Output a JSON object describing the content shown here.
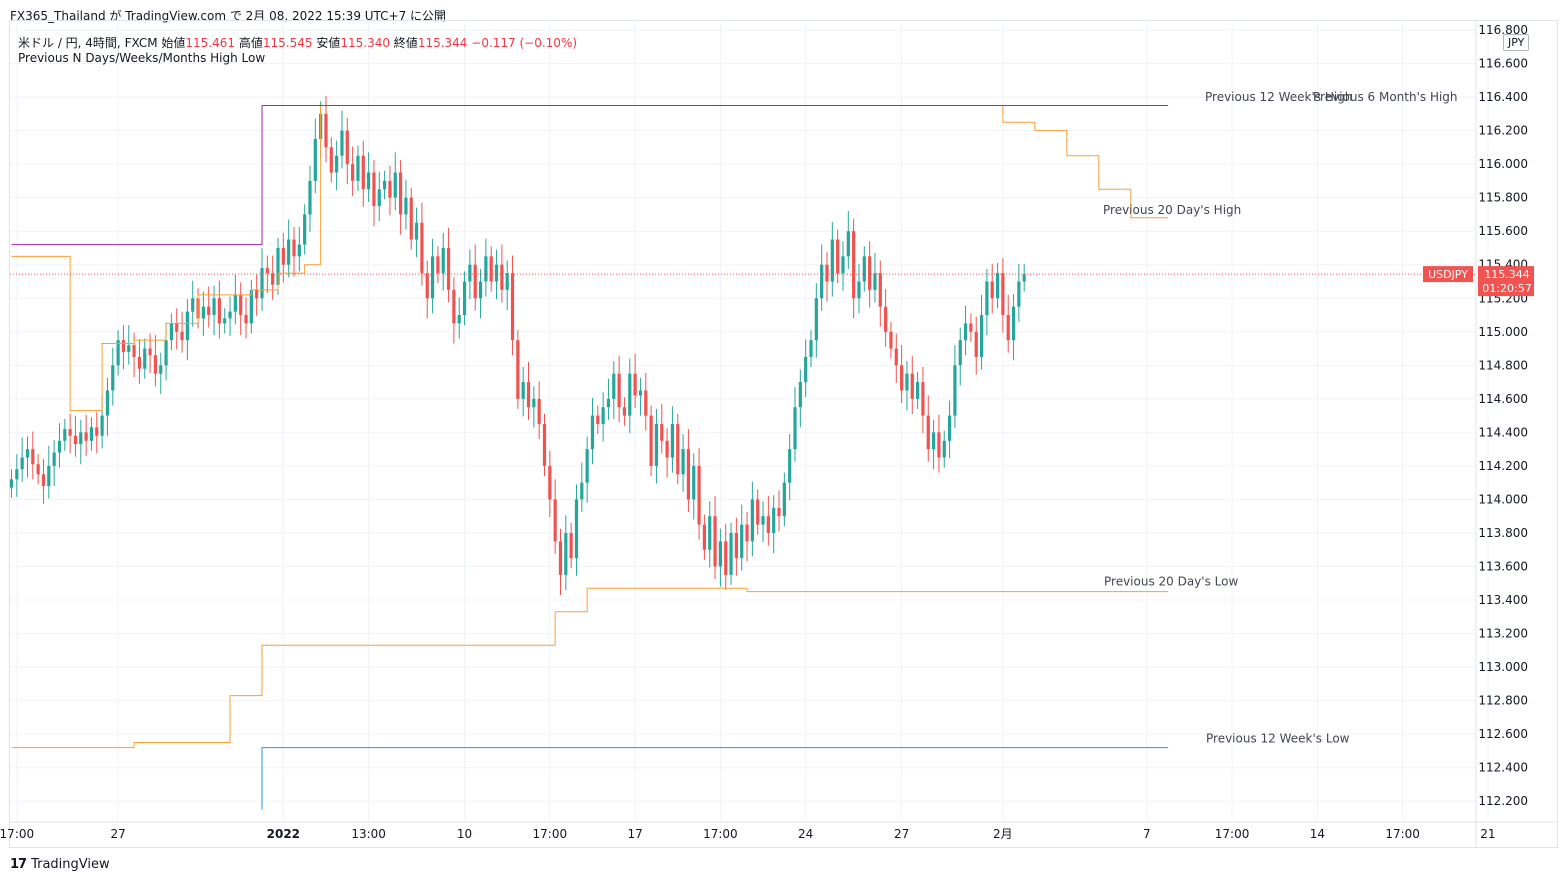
{
  "header": {
    "caption": "FX365_Thailand が TradingView.com で 2月 08, 2022 15:39 UTC+7 に公開"
  },
  "legend": {
    "symbol_info": "米ドル / 円, 4時間, FXCM",
    "open_label": "始値",
    "open_value": "115.461",
    "high_label": "高値",
    "high_value": "115.545",
    "low_label": "安値",
    "low_value": "115.340",
    "close_label": "終値",
    "close_value": "115.344",
    "change": "−0.117 (−0.10%)",
    "indicator_name": "Previous N Days/Weeks/Months High Low"
  },
  "currency_badge": "JPY",
  "footer": {
    "brand": "TradingView"
  },
  "colors": {
    "up": "#26a69a",
    "down": "#ef5350",
    "orange": "#f7a035",
    "purple": "#9c27b0",
    "blue": "#2196f3",
    "price_label": "#f05350"
  },
  "chart_data": {
    "type": "candlestick",
    "symbol": "USDJPY",
    "last_price": "115.344",
    "countdown": "01:20:57",
    "ylim": [
      112.1,
      116.8
    ],
    "y_ticks": [
      "116.800",
      "116.600",
      "116.400",
      "116.200",
      "116.000",
      "115.800",
      "115.600",
      "115.400",
      "115.200",
      "115.000",
      "114.800",
      "114.600",
      "114.400",
      "114.200",
      "114.000",
      "113.800",
      "113.600",
      "113.400",
      "113.200",
      "113.000",
      "112.800",
      "112.600",
      "112.400",
      "112.200"
    ],
    "x_ticks": [
      {
        "label": "17:00",
        "bar": 1,
        "bold": false
      },
      {
        "label": "27",
        "bar": 20,
        "bold": false
      },
      {
        "label": "2022",
        "bar": 51,
        "bold": true
      },
      {
        "label": "13:00",
        "bar": 67,
        "bold": false
      },
      {
        "label": "10",
        "bar": 85,
        "bold": false
      },
      {
        "label": "17:00",
        "bar": 101,
        "bold": false
      },
      {
        "label": "17",
        "bar": 117,
        "bold": false
      },
      {
        "label": "17:00",
        "bar": 133,
        "bold": false
      },
      {
        "label": "24",
        "bar": 149,
        "bold": false
      },
      {
        "label": "27",
        "bar": 167,
        "bold": false
      },
      {
        "label": "2月",
        "bar": 186,
        "bold": false
      },
      {
        "label": "7",
        "bar": 213,
        "bold": false
      },
      {
        "label": "17:00",
        "bar": 229,
        "bold": false
      },
      {
        "label": "14",
        "bar": 245,
        "bold": false
      },
      {
        "label": "17:00",
        "bar": 261,
        "bold": false
      },
      {
        "label": "21",
        "bar": 277,
        "bold": false
      }
    ],
    "closes": [
      114.12,
      114.18,
      114.25,
      114.3,
      114.21,
      114.15,
      114.08,
      114.2,
      114.28,
      114.35,
      114.42,
      114.38,
      114.33,
      114.4,
      114.35,
      114.43,
      114.38,
      114.5,
      114.65,
      114.8,
      114.95,
      114.88,
      114.92,
      114.85,
      114.78,
      114.9,
      114.86,
      114.75,
      114.8,
      114.95,
      115.05,
      115.0,
      114.95,
      115.12,
      115.2,
      115.08,
      115.15,
      115.1,
      115.2,
      115.05,
      115.08,
      115.12,
      115.22,
      115.1,
      115.05,
      115.25,
      115.2,
      115.38,
      115.35,
      115.28,
      115.5,
      115.4,
      115.55,
      115.45,
      115.52,
      115.7,
      115.9,
      116.15,
      116.3,
      116.1,
      115.95,
      116.05,
      116.2,
      116.0,
      115.9,
      116.05,
      115.85,
      115.95,
      115.75,
      115.85,
      115.9,
      115.8,
      115.95,
      115.7,
      115.8,
      115.55,
      115.65,
      115.35,
      115.2,
      115.45,
      115.35,
      115.5,
      115.25,
      115.05,
      115.1,
      115.3,
      115.4,
      115.2,
      115.3,
      115.45,
      115.3,
      115.4,
      115.25,
      115.35,
      114.95,
      114.6,
      114.7,
      114.55,
      114.6,
      114.45,
      114.2,
      114.0,
      113.75,
      113.55,
      113.8,
      113.65,
      114.0,
      114.1,
      114.3,
      114.5,
      114.45,
      114.55,
      114.6,
      114.75,
      114.55,
      114.5,
      114.75,
      114.62,
      114.65,
      114.5,
      114.2,
      114.45,
      114.35,
      114.25,
      114.45,
      114.15,
      114.3,
      114.0,
      114.2,
      113.85,
      113.7,
      113.9,
      113.6,
      113.75,
      113.55,
      113.8,
      113.65,
      113.85,
      113.75,
      114.0,
      113.85,
      113.9,
      113.8,
      113.95,
      113.9,
      114.1,
      114.3,
      114.55,
      114.7,
      114.85,
      114.95,
      115.2,
      115.4,
      115.3,
      115.55,
      115.35,
      115.45,
      115.6,
      115.2,
      115.3,
      115.45,
      115.25,
      115.35,
      115.15,
      115.0,
      114.9,
      114.8,
      114.65,
      114.75,
      114.6,
      114.7,
      114.5,
      114.3,
      114.4,
      114.25,
      114.35,
      114.5,
      114.8,
      114.95,
      115.05,
      115.0,
      114.85,
      115.1,
      115.3,
      115.2,
      115.35,
      115.1,
      114.95,
      115.15,
      115.3,
      115.344
    ],
    "series": [
      {
        "name": "Previous 20 Day's High",
        "color": "orange",
        "label_side": "right"
      },
      {
        "name": "Previous 20 Day's Low",
        "color": "orange",
        "label_side": "right"
      },
      {
        "name": "Previous 12 Week's High",
        "color": "purple",
        "label_side": "right"
      },
      {
        "name": "Previous 12 Week's Low",
        "color": "blue",
        "label_side": "right"
      },
      {
        "name": "Previous 6 Month's High",
        "color": "purple",
        "label_side": "right"
      }
    ],
    "levels": {
      "d20_high": [
        [
          0,
          115.45
        ],
        [
          11,
          114.53
        ],
        [
          17,
          114.93
        ],
        [
          23,
          114.95
        ],
        [
          29,
          115.05
        ],
        [
          35,
          115.22
        ],
        [
          45,
          115.25
        ],
        [
          50,
          115.35
        ],
        [
          55,
          115.4
        ],
        [
          58,
          116.35
        ],
        [
          79,
          116.35
        ],
        [
          186,
          116.25
        ],
        [
          192,
          116.2
        ],
        [
          198,
          116.05
        ],
        [
          204,
          115.85
        ],
        [
          210,
          115.68
        ],
        [
          217,
          115.68
        ]
      ],
      "d20_low": [
        [
          0,
          112.52
        ],
        [
          23,
          112.55
        ],
        [
          41,
          112.83
        ],
        [
          47,
          113.13
        ],
        [
          102,
          113.33
        ],
        [
          108,
          113.47
        ],
        [
          138,
          113.45
        ],
        [
          217,
          113.45
        ]
      ],
      "w12_high": [
        [
          0,
          115.52
        ],
        [
          47,
          116.35
        ],
        [
          217,
          116.35
        ]
      ],
      "w12_low": [
        [
          47,
          112.15
        ],
        [
          47,
          112.52
        ],
        [
          217,
          112.52
        ]
      ]
    }
  }
}
